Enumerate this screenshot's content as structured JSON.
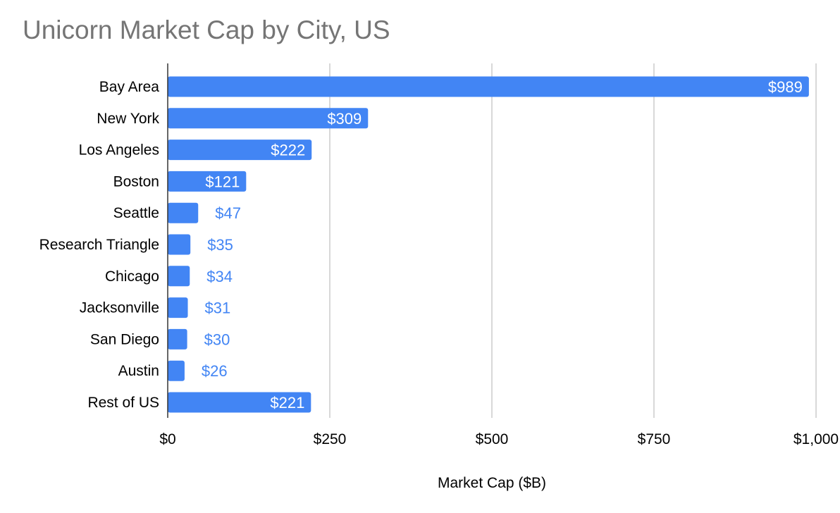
{
  "chart_data": {
    "type": "bar",
    "orientation": "horizontal",
    "title": "Unicorn Market Cap by City, US",
    "xlabel": "Market Cap ($B)",
    "ylabel": "",
    "categories": [
      "Bay Area",
      "New York",
      "Los Angeles",
      "Boston",
      "Seattle",
      "Research Triangle",
      "Chicago",
      "Jacksonville",
      "San Diego",
      "Austin",
      "Rest of US"
    ],
    "values": [
      989,
      309,
      222,
      121,
      47,
      35,
      34,
      31,
      30,
      26,
      221
    ],
    "data_labels": [
      "$989",
      "$309",
      "$222",
      "$121",
      "$47",
      "$35",
      "$34",
      "$31",
      "$30",
      "$26",
      "$221"
    ],
    "xlim": [
      0,
      1000
    ],
    "xticks": [
      0,
      250,
      500,
      750,
      1000
    ],
    "xtick_labels": [
      "$0",
      "$250",
      "$500",
      "$750",
      "$1,000"
    ],
    "grid": true,
    "legend": "none",
    "bar_color": "#4285f4",
    "inside_label_color": "#ffffff",
    "outside_label_color": "#4285f4",
    "gridline_color": "#cccccc",
    "title_color": "#757575"
  }
}
